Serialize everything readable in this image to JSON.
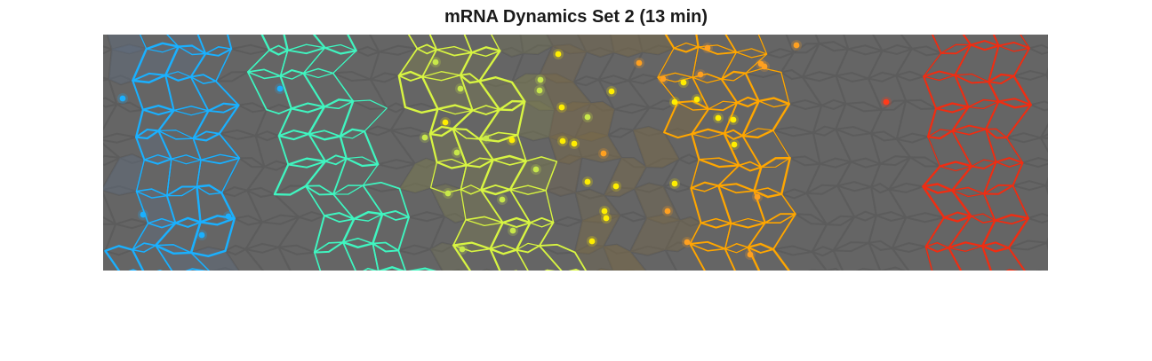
{
  "figure": {
    "title": "mRNA Dynamics Set 2 (13 min)",
    "background_color": "#656565",
    "cell_edge_color": "#5c5c5c"
  },
  "stripes": [
    {
      "name": "stripe-1",
      "color": "#1ab0ff"
    },
    {
      "name": "stripe-2",
      "color": "#40f5c0"
    },
    {
      "name": "stripe-3",
      "color": "#d8f542"
    },
    {
      "name": "stripe-4",
      "color": "#ffa600"
    },
    {
      "name": "stripe-5",
      "color": "#f02d12"
    }
  ],
  "nuclei_colors": {
    "cyan": "#1ab0ff",
    "yellow": "#ffee00",
    "lime": "#c8e84a",
    "orange": "#ffa020",
    "red": "#ff3a1a"
  }
}
